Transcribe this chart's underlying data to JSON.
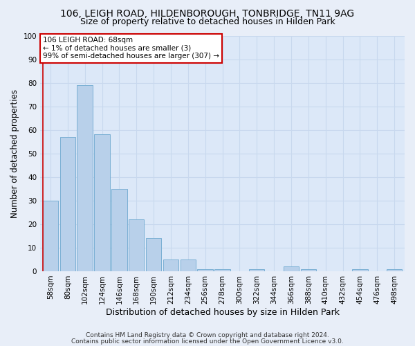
{
  "title": "106, LEIGH ROAD, HILDENBOROUGH, TONBRIDGE, TN11 9AG",
  "subtitle": "Size of property relative to detached houses in Hilden Park",
  "xlabel": "Distribution of detached houses by size in Hilden Park",
  "ylabel": "Number of detached properties",
  "footer1": "Contains HM Land Registry data © Crown copyright and database right 2024.",
  "footer2": "Contains public sector information licensed under the Open Government Licence v3.0.",
  "annotation_title": "106 LEIGH ROAD: 68sqm",
  "annotation_line1": "← 1% of detached houses are smaller (3)",
  "annotation_line2": "99% of semi-detached houses are larger (307) →",
  "bar_labels": [
    "58sqm",
    "80sqm",
    "102sqm",
    "124sqm",
    "146sqm",
    "168sqm",
    "190sqm",
    "212sqm",
    "234sqm",
    "256sqm",
    "278sqm",
    "300sqm",
    "322sqm",
    "344sqm",
    "366sqm",
    "388sqm",
    "410sqm",
    "432sqm",
    "454sqm",
    "476sqm",
    "498sqm"
  ],
  "bar_values": [
    30,
    57,
    79,
    58,
    35,
    22,
    14,
    5,
    5,
    1,
    1,
    0,
    1,
    0,
    2,
    1,
    0,
    0,
    1,
    0,
    1
  ],
  "bar_color": "#b8d0ea",
  "bar_edge_color": "#7aafd4",
  "annotation_box_color": "#ffffff",
  "annotation_box_edge": "#cc0000",
  "vline_color": "#cc0000",
  "ylim": [
    0,
    100
  ],
  "yticks": [
    0,
    10,
    20,
    30,
    40,
    50,
    60,
    70,
    80,
    90,
    100
  ],
  "grid_color": "#c8d8ee",
  "bg_color": "#dce8f8",
  "fig_bg_color": "#e8eef8",
  "title_fontsize": 10,
  "subtitle_fontsize": 9,
  "axis_label_fontsize": 8.5,
  "tick_fontsize": 7.5,
  "footer_fontsize": 6.5,
  "annotation_fontsize": 7.5
}
